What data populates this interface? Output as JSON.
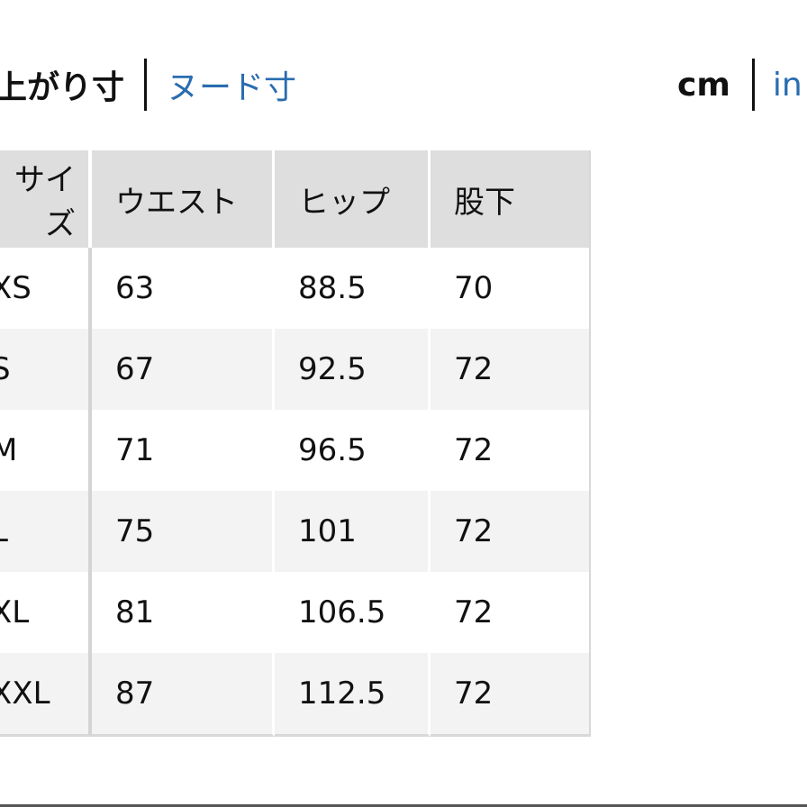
{
  "measure_toggle": {
    "active": "上がり寸",
    "other": "ヌード寸"
  },
  "unit_toggle": {
    "active": "cm",
    "other": "in"
  },
  "table": {
    "headers": [
      "サイズ",
      "ウエスト",
      "ヒップ",
      "股下"
    ],
    "rows": [
      [
        "XS",
        "63",
        "88.5",
        "70"
      ],
      [
        "S",
        "67",
        "92.5",
        "72"
      ],
      [
        "M",
        "71",
        "96.5",
        "72"
      ],
      [
        "L",
        "75",
        "101",
        "72"
      ],
      [
        "XL",
        "81",
        "106.5",
        "72"
      ],
      [
        "XXL",
        "87",
        "112.5",
        "72"
      ]
    ]
  },
  "colors": {
    "link": "#2a6cb0",
    "header_bg": "#dedede",
    "stripe_bg": "#f3f3f3"
  }
}
